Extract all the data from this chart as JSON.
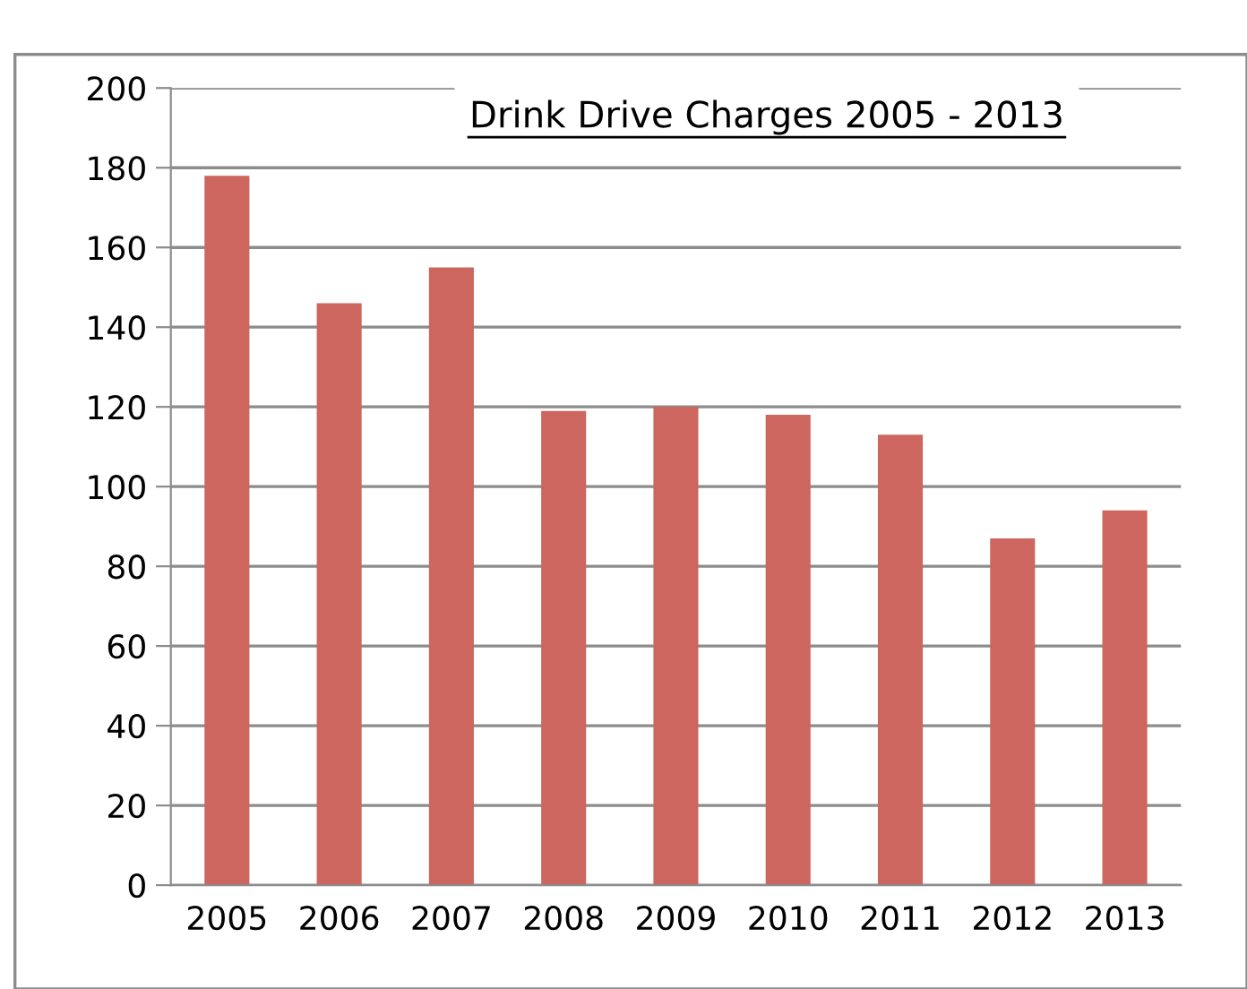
{
  "chart_data": {
    "type": "bar",
    "title": "Drink Drive Charges 2005 - 2013",
    "categories": [
      "2005",
      "2006",
      "2007",
      "2008",
      "2009",
      "2010",
      "2011",
      "2012",
      "2013"
    ],
    "values": [
      178,
      146,
      155,
      119,
      120,
      118,
      113,
      87,
      94
    ],
    "color": "#cd665e",
    "ylim": [
      0,
      200
    ],
    "yticks": [
      0,
      20,
      40,
      60,
      80,
      100,
      120,
      140,
      160,
      180,
      200
    ],
    "grid": "y"
  }
}
